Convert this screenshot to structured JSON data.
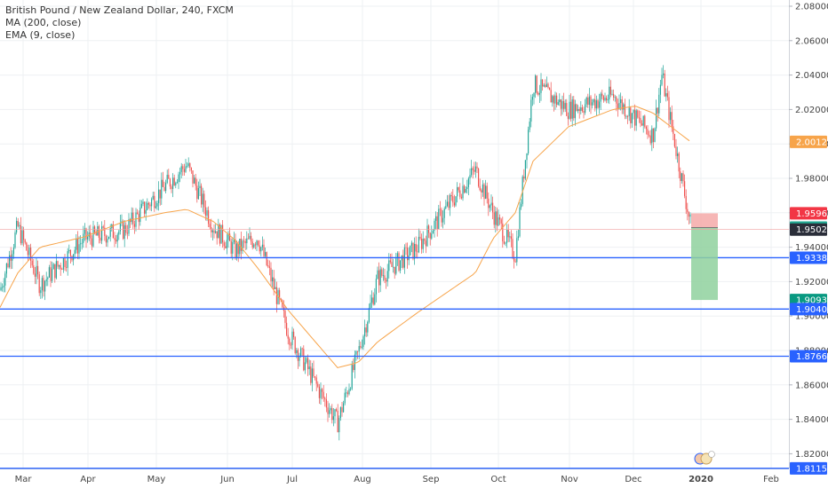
{
  "legend": {
    "symbol_line": "British Pound / New Zealand Dollar, 240, FXCM",
    "ma_line": "MA (200, close)",
    "ema_line": "EMA (9, close)"
  },
  "colors": {
    "up": "#26a69a",
    "down": "#ef5350",
    "ma": "#f7a44a",
    "ema": "#f7a44a",
    "hline": "#2962ff",
    "stop_zone": "#f4a9a8",
    "target_zone": "#8fd19e",
    "axis_bg": "#ffffff",
    "grid": "#eef0f3"
  },
  "chart_data": {
    "type": "line",
    "title": "British Pound / New Zealand Dollar, 240, FXCM",
    "symbol": "GBPNZD",
    "timeframe": "240",
    "xlabel": "",
    "ylabel": "",
    "x_ticks": [
      "Mar",
      "Apr",
      "May",
      "Jun",
      "Jul",
      "Aug",
      "Sep",
      "Oct",
      "Nov",
      "Dec",
      "2020",
      "Feb"
    ],
    "y_ticks": [
      "2.08000",
      "2.06000",
      "2.04000",
      "2.02000",
      "2.00000",
      "1.98000",
      "1.96000",
      "1.94000",
      "1.92000",
      "1.90000",
      "1.88000",
      "1.86000",
      "1.84000",
      "1.82000"
    ],
    "ylim": [
      1.805,
      2.085
    ],
    "grid": true,
    "x": [
      "Feb",
      "Mar",
      "Mar",
      "Apr",
      "Apr",
      "May",
      "May",
      "Jun",
      "Jun",
      "Jul",
      "Jul",
      "Aug",
      "Aug",
      "Aug",
      "Sep",
      "Sep",
      "Oct",
      "Oct",
      "Oct",
      "Oct",
      "Nov",
      "Nov",
      "Dec",
      "Dec",
      "Dec",
      "Jan"
    ],
    "series": [
      {
        "name": "",
        "values": [
          1.915,
          1.952,
          1.918,
          1.945,
          1.95,
          1.975,
          1.988,
          1.952,
          1.938,
          1.946,
          1.89,
          1.856,
          1.838,
          1.878,
          1.922,
          1.94,
          1.985,
          1.96,
          1.935,
          2.035,
          2.02,
          2.028,
          2.015,
          2.005,
          2.04,
          1.951
        ]
      },
      {
        "name": "",
        "values": [
          1.905,
          1.925,
          1.94,
          1.946,
          1.955,
          1.96,
          1.962,
          1.955,
          1.944,
          1.928,
          1.903,
          1.882,
          1.87,
          1.873,
          1.885,
          1.902,
          1.925,
          1.945,
          1.96,
          1.99,
          2.01,
          2.02,
          2.022,
          2.018,
          2.014,
          2.001
        ]
      }
    ],
    "horizontal_levels": [
      1.93389,
      1.90406,
      1.87666,
      1.81153
    ],
    "axis_tags": [
      {
        "value": "2.00123",
        "bg": "#f7a44a"
      },
      {
        "value": "1.95968",
        "bg": "#f23645"
      },
      {
        "value": "1.95142",
        "bg": "#22ab94"
      },
      {
        "value": "1.95026",
        "bg": "#2a2e39"
      },
      {
        "value": "1.93389",
        "bg": "#2962ff"
      },
      {
        "value": "1.90934",
        "bg": "#089981"
      },
      {
        "value": "1.90406",
        "bg": "#2962ff"
      },
      {
        "value": "1.87666",
        "bg": "#2962ff"
      },
      {
        "value": "1.81153",
        "bg": "#2962ff"
      }
    ],
    "position": {
      "entry": 1.95142,
      "stop": 1.95968,
      "target": 1.90934
    }
  }
}
